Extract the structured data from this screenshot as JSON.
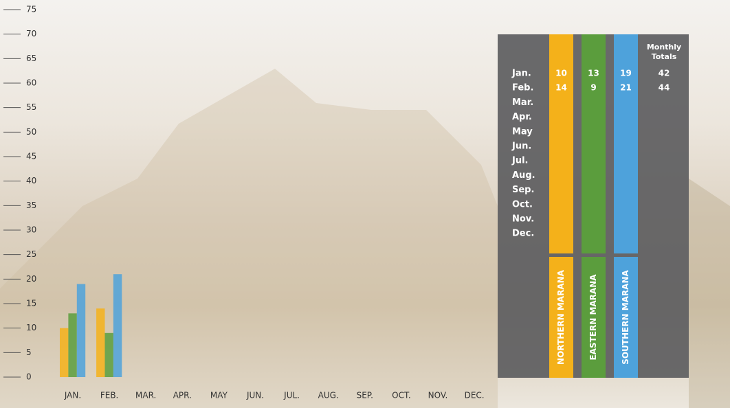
{
  "chart_data": {
    "type": "bar",
    "categories": [
      "JAN.",
      "FEB.",
      "MAR.",
      "APR.",
      "MAY",
      "JUN.",
      "JUL.",
      "AUG.",
      "SEP.",
      "OCT.",
      "NOV.",
      "DEC."
    ],
    "table_months": [
      "Jan.",
      "Feb.",
      "Mar.",
      "Apr.",
      "May",
      "Jun.",
      "Jul.",
      "Aug.",
      "Sep.",
      "Oct.",
      "Nov.",
      "Dec."
    ],
    "series": [
      {
        "name": "NORTHERN MARANA",
        "color": "#f4b11a",
        "values": [
          10,
          14,
          null,
          null,
          null,
          null,
          null,
          null,
          null,
          null,
          null,
          null
        ]
      },
      {
        "name": "EASTERN MARANA",
        "color": "#5b9d3d",
        "values": [
          13,
          9,
          null,
          null,
          null,
          null,
          null,
          null,
          null,
          null,
          null,
          null
        ]
      },
      {
        "name": "SOUTHERN MARANA",
        "color": "#4ea2db",
        "values": [
          19,
          21,
          null,
          null,
          null,
          null,
          null,
          null,
          null,
          null,
          null,
          null
        ]
      }
    ],
    "totals_label": "Monthly Totals",
    "totals": [
      42,
      44,
      null,
      null,
      null,
      null,
      null,
      null,
      null,
      null,
      null,
      null
    ],
    "ylim": [
      0,
      75
    ],
    "yticks": [
      0,
      5,
      10,
      15,
      20,
      25,
      30,
      35,
      40,
      45,
      50,
      55,
      60,
      65,
      70,
      75
    ]
  }
}
